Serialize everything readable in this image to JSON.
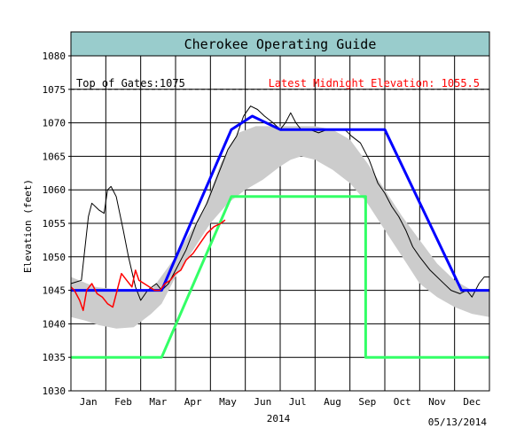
{
  "chart_data": {
    "type": "line",
    "title": "Cherokee Operating Guide",
    "ylabel": "Elevation (feet)",
    "xlabel": "2014",
    "date": "05/13/2014",
    "ylim": [
      1030,
      1080
    ],
    "yticks": [
      1030,
      1035,
      1040,
      1045,
      1050,
      1055,
      1060,
      1065,
      1070,
      1075,
      1080
    ],
    "months": [
      "Jan",
      "Feb",
      "Mar",
      "Apr",
      "May",
      "Jun",
      "Jul",
      "Aug",
      "Sep",
      "Oct",
      "Nov",
      "Dec"
    ],
    "xlim": [
      0,
      12
    ],
    "grid": true,
    "annotations": {
      "top_of_gates_label": "Top of Gates:1075",
      "top_of_gates_value": 1075,
      "latest_label": "Latest Midnight Elevation: 1055.5"
    },
    "colors": {
      "header": "#99cccc",
      "guide_upper": "#0000ff",
      "guide_lower": "#33ff66",
      "band": "#cccccc",
      "history": "#000000",
      "current": "#ff0000",
      "latest_text": "#ff0000"
    },
    "series": [
      {
        "key": "band",
        "upper": [
          [
            0,
            1047
          ],
          [
            0.7,
            1045.5
          ],
          [
            1.5,
            1045
          ],
          [
            2.3,
            1045
          ],
          [
            3.0,
            1050
          ],
          [
            3.8,
            1057
          ],
          [
            4.3,
            1064
          ],
          [
            4.8,
            1068.5
          ],
          [
            5.3,
            1069.5
          ],
          [
            6,
            1069.5
          ],
          [
            7,
            1069.5
          ],
          [
            7.5,
            1069
          ],
          [
            8,
            1067.5
          ],
          [
            8.5,
            1064
          ],
          [
            9,
            1060
          ],
          [
            9.5,
            1056
          ],
          [
            10,
            1052.5
          ],
          [
            10.5,
            1049
          ],
          [
            11,
            1046.5
          ],
          [
            11.5,
            1045
          ],
          [
            12,
            1045
          ]
        ],
        "lower": [
          [
            12,
            1041
          ],
          [
            11.5,
            1041.5
          ],
          [
            11,
            1042.5
          ],
          [
            10.5,
            1044
          ],
          [
            10,
            1046
          ],
          [
            9.5,
            1050
          ],
          [
            9,
            1054
          ],
          [
            8.5,
            1058
          ],
          [
            8,
            1061
          ],
          [
            7.5,
            1063
          ],
          [
            7,
            1064.5
          ],
          [
            6.6,
            1065
          ],
          [
            6.3,
            1064.5
          ],
          [
            6,
            1063.5
          ],
          [
            5.5,
            1061.5
          ],
          [
            5,
            1060
          ],
          [
            4.5,
            1058
          ],
          [
            4,
            1055
          ],
          [
            3.5,
            1051
          ],
          [
            3,
            1047
          ],
          [
            2.6,
            1043
          ],
          [
            2.3,
            1041.5
          ],
          [
            1.8,
            1039.5
          ],
          [
            1.3,
            1039.3
          ],
          [
            0.8,
            1039.8
          ],
          [
            0.4,
            1040.5
          ],
          [
            0,
            1041
          ]
        ]
      },
      {
        "key": "history",
        "points": [
          [
            0,
            1046
          ],
          [
            0.3,
            1046.5
          ],
          [
            0.5,
            1056
          ],
          [
            0.6,
            1058
          ],
          [
            0.8,
            1057
          ],
          [
            0.95,
            1056.5
          ],
          [
            1.05,
            1060
          ],
          [
            1.15,
            1060.5
          ],
          [
            1.3,
            1059
          ],
          [
            1.5,
            1054
          ],
          [
            1.65,
            1050
          ],
          [
            1.85,
            1045.5
          ],
          [
            2.0,
            1043.5
          ],
          [
            2.2,
            1045
          ],
          [
            2.45,
            1046
          ],
          [
            2.6,
            1045
          ],
          [
            2.8,
            1046
          ],
          [
            3.0,
            1048
          ],
          [
            3.3,
            1051
          ],
          [
            3.6,
            1055
          ],
          [
            3.9,
            1058
          ],
          [
            4.2,
            1062
          ],
          [
            4.5,
            1066
          ],
          [
            4.75,
            1068
          ],
          [
            4.95,
            1071
          ],
          [
            5.15,
            1072.5
          ],
          [
            5.35,
            1072
          ],
          [
            5.55,
            1071
          ],
          [
            5.8,
            1070
          ],
          [
            6.0,
            1069
          ],
          [
            6.15,
            1070
          ],
          [
            6.3,
            1071.5
          ],
          [
            6.45,
            1070
          ],
          [
            6.6,
            1069
          ],
          [
            6.85,
            1069
          ],
          [
            7.1,
            1068.5
          ],
          [
            7.35,
            1069
          ],
          [
            7.6,
            1069
          ],
          [
            7.85,
            1069
          ],
          [
            8.05,
            1068
          ],
          [
            8.3,
            1067
          ],
          [
            8.55,
            1064.5
          ],
          [
            8.8,
            1061
          ],
          [
            9.0,
            1059.5
          ],
          [
            9.2,
            1057.5
          ],
          [
            9.4,
            1056
          ],
          [
            9.6,
            1054
          ],
          [
            9.8,
            1051.5
          ],
          [
            10.0,
            1050
          ],
          [
            10.3,
            1048
          ],
          [
            10.6,
            1046.5
          ],
          [
            10.9,
            1045
          ],
          [
            11.15,
            1044.5
          ],
          [
            11.35,
            1045
          ],
          [
            11.5,
            1044
          ],
          [
            11.7,
            1046
          ],
          [
            11.85,
            1047
          ],
          [
            12,
            1047
          ]
        ]
      },
      {
        "key": "current",
        "points": [
          [
            0,
            1045.5
          ],
          [
            0.1,
            1045
          ],
          [
            0.25,
            1043.5
          ],
          [
            0.35,
            1042
          ],
          [
            0.45,
            1045
          ],
          [
            0.6,
            1046
          ],
          [
            0.75,
            1044.5
          ],
          [
            0.9,
            1044
          ],
          [
            1.05,
            1043
          ],
          [
            1.2,
            1042.5
          ],
          [
            1.35,
            1045.5
          ],
          [
            1.45,
            1047.5
          ],
          [
            1.6,
            1046.5
          ],
          [
            1.75,
            1045.5
          ],
          [
            1.85,
            1048
          ],
          [
            1.95,
            1046.5
          ],
          [
            2.1,
            1046
          ],
          [
            2.25,
            1045.5
          ],
          [
            2.4,
            1045
          ],
          [
            2.55,
            1045
          ],
          [
            2.7,
            1046
          ],
          [
            2.85,
            1046.5
          ],
          [
            3.0,
            1047.5
          ],
          [
            3.15,
            1048
          ],
          [
            3.3,
            1049.5
          ],
          [
            3.5,
            1050.5
          ],
          [
            3.7,
            1052
          ],
          [
            3.9,
            1053.5
          ],
          [
            4.1,
            1054.5
          ],
          [
            4.3,
            1055
          ],
          [
            4.42,
            1055.5
          ]
        ]
      },
      {
        "key": "guide_lower",
        "points": [
          [
            0,
            1035
          ],
          [
            2.6,
            1035
          ],
          [
            4.6,
            1059
          ],
          [
            8.45,
            1059
          ],
          [
            8.45,
            1035
          ],
          [
            12,
            1035
          ]
        ]
      },
      {
        "key": "guide_upper",
        "points": [
          [
            0,
            1045
          ],
          [
            2.6,
            1045
          ],
          [
            4.6,
            1069
          ],
          [
            5.2,
            1071
          ],
          [
            6.0,
            1069
          ],
          [
            9.0,
            1069
          ],
          [
            11.2,
            1045
          ],
          [
            12,
            1045
          ]
        ]
      }
    ]
  }
}
